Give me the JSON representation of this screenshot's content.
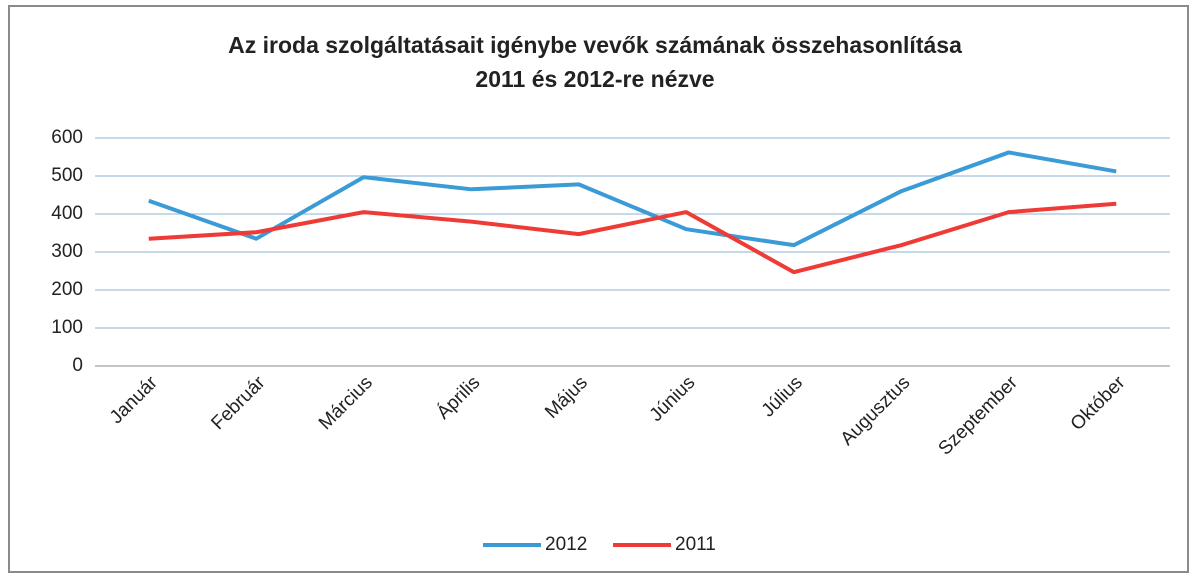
{
  "chart_data": {
    "type": "line",
    "title": "Az iroda szolgáltatásait igénybe vevők számának összehasonlítása 2011 és 2012-re nézve",
    "categories": [
      "Január",
      "Február",
      "Március",
      "Április",
      "Május",
      "Június",
      "Július",
      "Augusztus",
      "Szeptember",
      "Október"
    ],
    "series": [
      {
        "name": "2012",
        "color": "#3b9bd6",
        "values": [
          435,
          335,
          497,
          465,
          478,
          360,
          318,
          460,
          562,
          512
        ]
      },
      {
        "name": "2011",
        "color": "#ee3b35",
        "values": [
          335,
          352,
          405,
          380,
          347,
          405,
          247,
          318,
          405,
          427
        ]
      }
    ],
    "ylim": [
      0,
      600
    ],
    "yticks": [
      0,
      100,
      200,
      300,
      400,
      500,
      600
    ],
    "grid": true,
    "legend": "bottom"
  }
}
